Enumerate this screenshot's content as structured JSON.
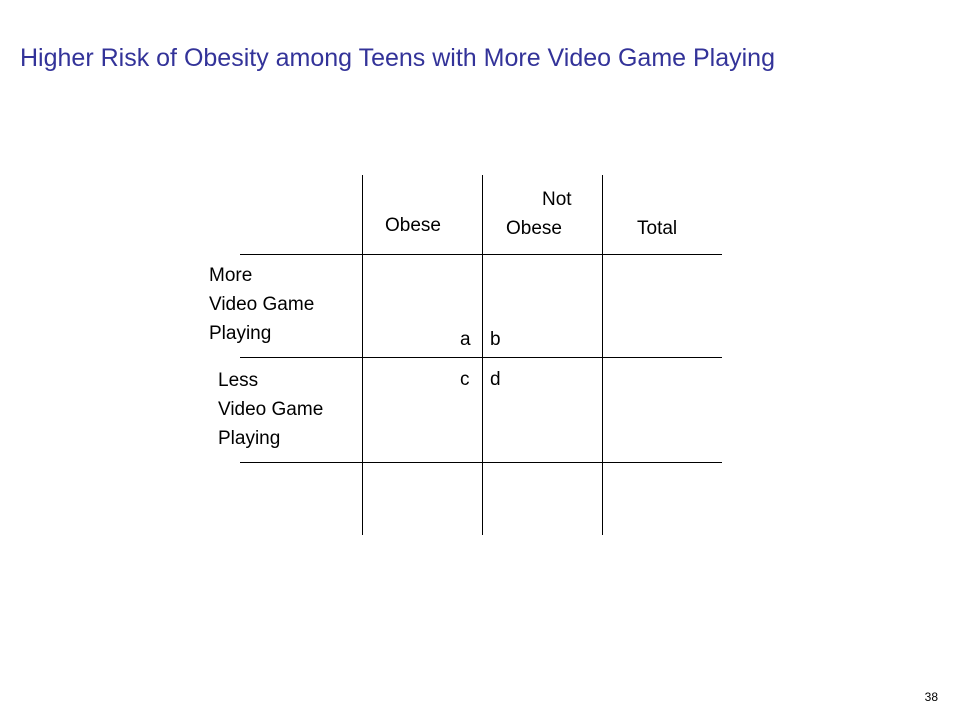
{
  "slide": {
    "title": "Higher Risk of Obesity among Teens with More Video Game Playing",
    "page_number": "38"
  },
  "table": {
    "column_headers": {
      "obese": "Obese",
      "not_obese_line1": "Not",
      "not_obese_line2": "Obese",
      "total": "Total"
    },
    "row_labels": {
      "more": [
        "More",
        "Video Game",
        "Playing"
      ],
      "less": [
        "Less",
        "Video Game",
        "Playing"
      ]
    },
    "cells": {
      "a": "a",
      "b": "b",
      "c": "c",
      "d": "d"
    }
  }
}
